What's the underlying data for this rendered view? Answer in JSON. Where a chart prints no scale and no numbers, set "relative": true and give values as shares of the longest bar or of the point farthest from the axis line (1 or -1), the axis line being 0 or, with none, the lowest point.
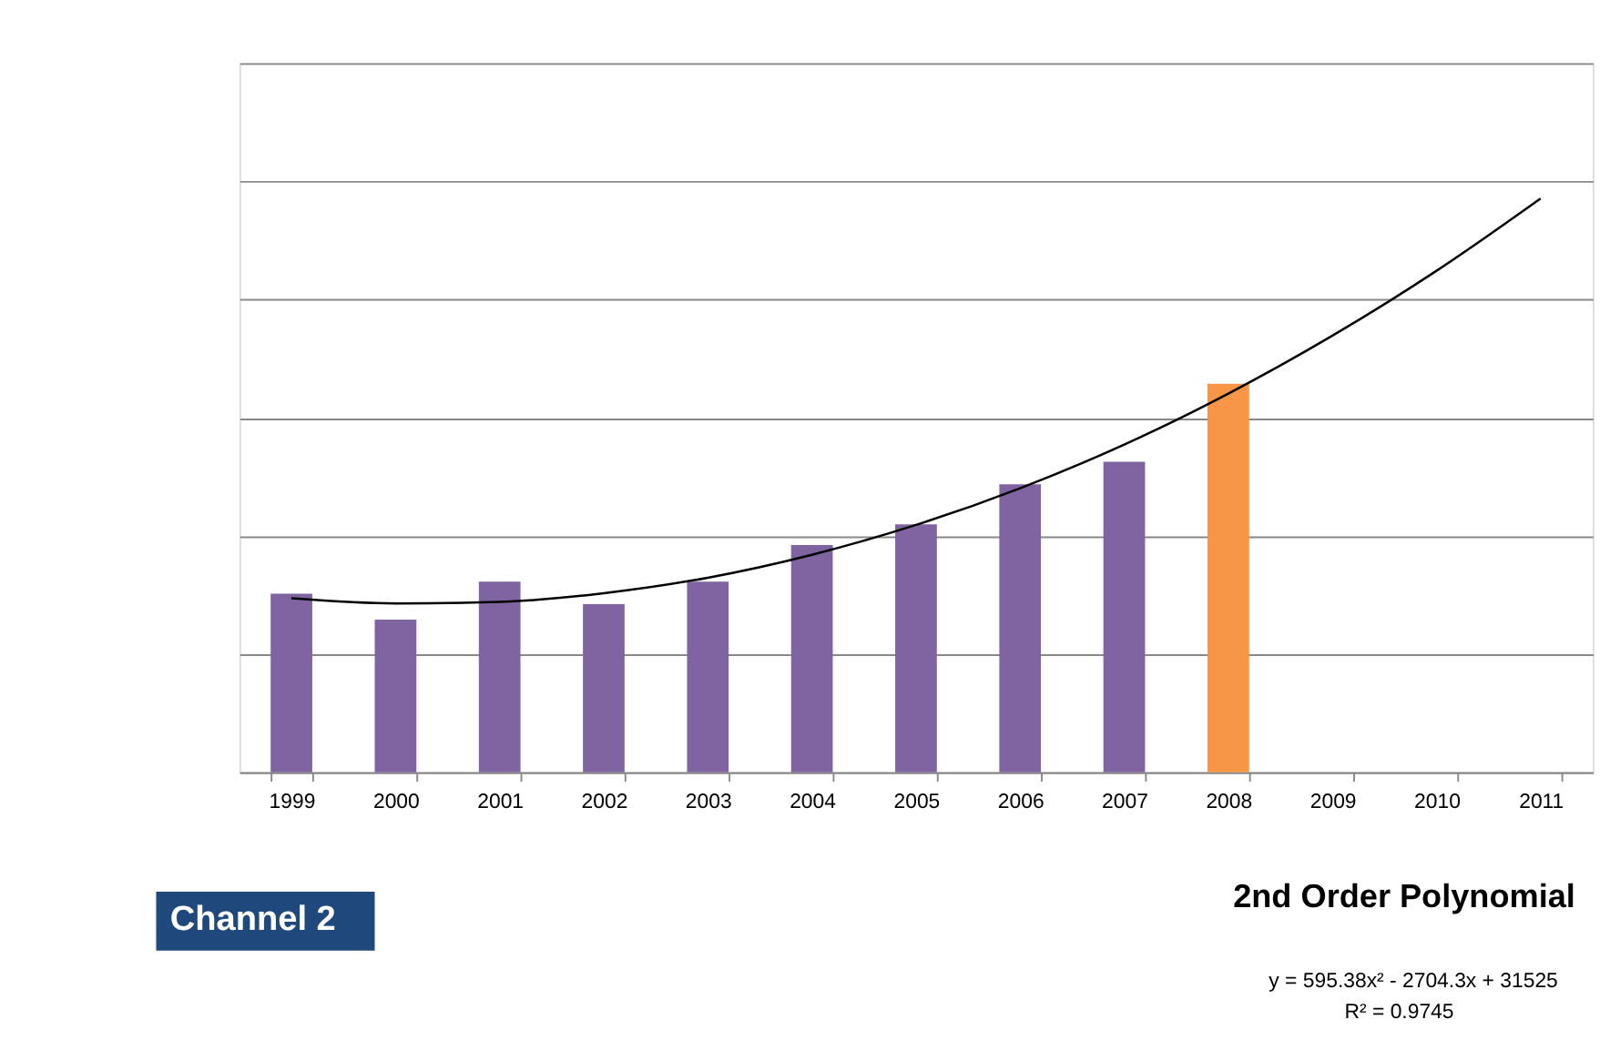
{
  "chart_data": {
    "type": "bar",
    "relative": true,
    "grid": "y",
    "categories": [
      "1999",
      "2000",
      "2001",
      "2002",
      "2003",
      "2004",
      "2005",
      "2006",
      "2007",
      "2008",
      "2009",
      "2010",
      "2011"
    ],
    "series": [
      {
        "colors": [
          "#8064a2",
          "#8064a2",
          "#8064a2",
          "#8064a2",
          "#8064a2",
          "#8064a2",
          "#8064a2",
          "#8064a2",
          "#8064a2",
          "#f79646",
          null,
          null,
          null
        ],
        "values": [
          0.311,
          0.266,
          0.332,
          0.293,
          0.332,
          0.396,
          0.432,
          0.502,
          0.541,
          0.677,
          null,
          null,
          null
        ]
      },
      {
        "type": "line",
        "color": "#000000",
        "marker": "none",
        "line_style": "solid",
        "values": [
          0.303,
          0.294,
          0.297,
          0.312,
          0.339,
          0.379,
          0.431,
          0.495,
          0.571,
          0.66,
          0.761,
          0.874,
          1.0
        ]
      }
    ],
    "annotations": [
      "Channel 2",
      "2nd Order Polynomial",
      "y = 595.38x² - 2704.3x + 31525",
      "R² = 0.9745"
    ]
  }
}
